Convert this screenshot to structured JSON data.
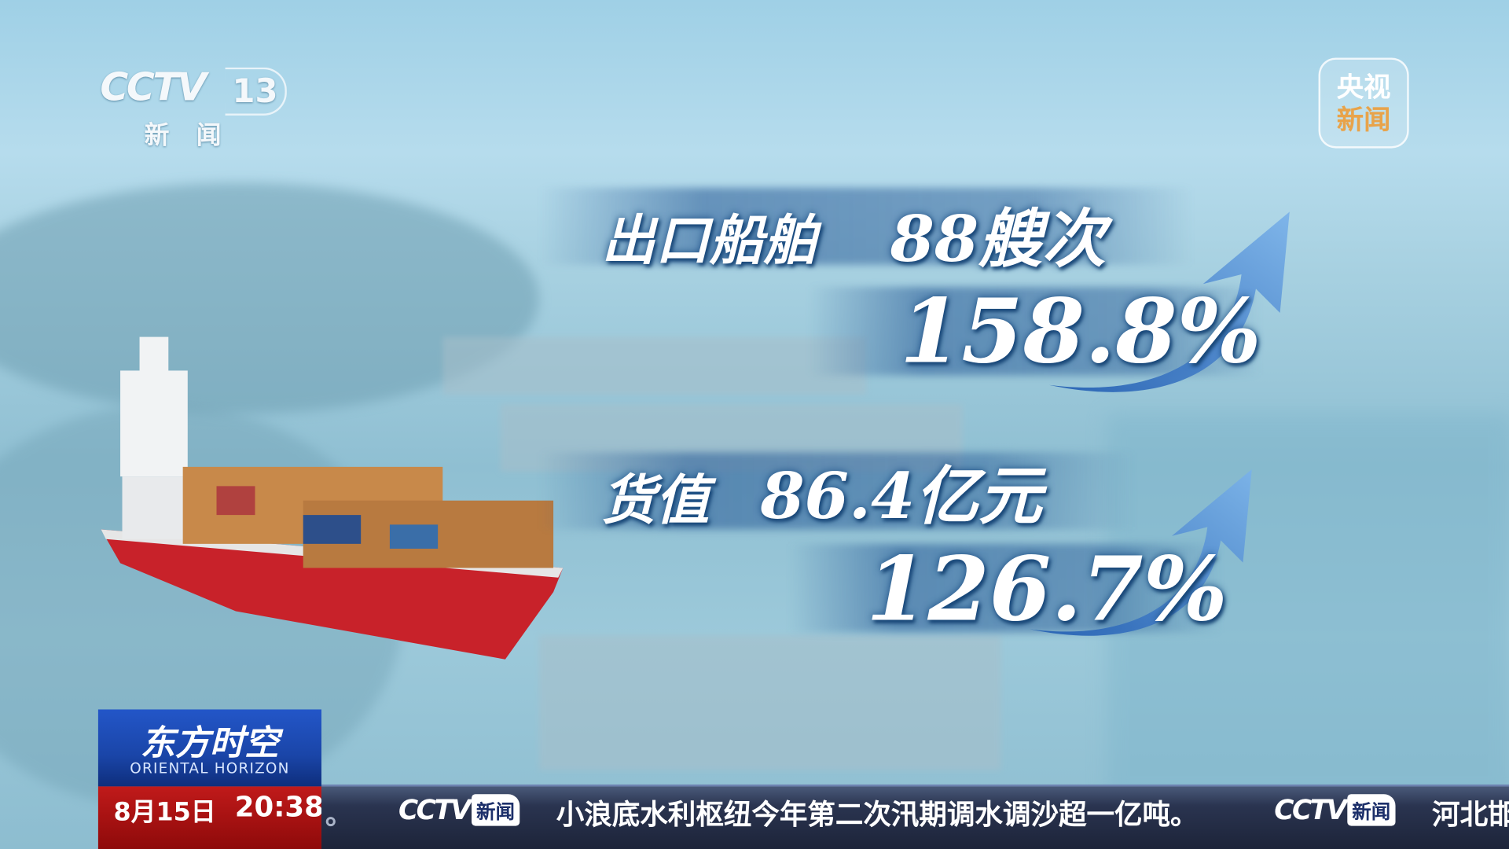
{
  "channel": {
    "logo": "CCTV",
    "number": "13",
    "subtitle": "新闻"
  },
  "watermark": {
    "line1": "央视",
    "line2": "新闻"
  },
  "stats": [
    {
      "label": "出口船舶",
      "value": "88艘次",
      "growth": "158.8%",
      "trend": "up"
    },
    {
      "label": "货值",
      "value": "86.4亿元",
      "growth": "126.7%",
      "trend": "up"
    }
  ],
  "program": {
    "title": "东方时空",
    "english": "ORIENTAL HORIZON"
  },
  "clock": {
    "date": "8月15日",
    "time": "20:38"
  },
  "ticker": {
    "prev_tail": "。",
    "logo": "CCTV",
    "logo_badge": "新闻",
    "headline": "小浪底水利枢纽今年第二次汛期调水调沙超一亿吨。",
    "next": "河北邯"
  },
  "colors": {
    "accent_blue": "#1a45a8",
    "clock_red": "#c01a1a",
    "ticker_bg": "#1c2338",
    "arrow_blue": "#3a7fd0"
  }
}
